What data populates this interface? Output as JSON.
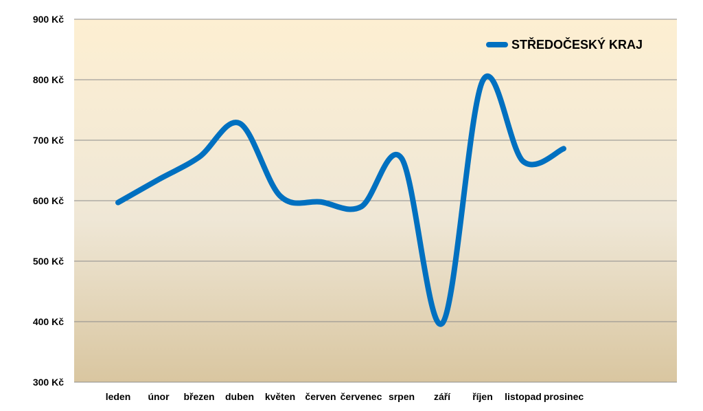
{
  "chart_data": {
    "type": "line",
    "title": "",
    "xlabel": "",
    "ylabel": "",
    "categories": [
      "leden",
      "únor",
      "březen",
      "duben",
      "květen",
      "červen",
      "červenec",
      "srpen",
      "září",
      "říjen",
      "listopad",
      "prosinec"
    ],
    "series": [
      {
        "name": "STŘEDOČESKÝ KRAJ",
        "color": "#0070C0",
        "values": [
          597,
          635,
          672,
          728,
          608,
          598,
          590,
          670,
          397,
          798,
          665,
          686
        ]
      }
    ],
    "ylim": [
      300,
      900
    ],
    "yticks": [
      300,
      400,
      500,
      600,
      700,
      800,
      900
    ],
    "ytick_suffix": " Kč",
    "grid": true,
    "legend_position": "top-right",
    "smooth": true,
    "plot_background": [
      "#FDEFD2",
      "#D9C6A0"
    ]
  }
}
